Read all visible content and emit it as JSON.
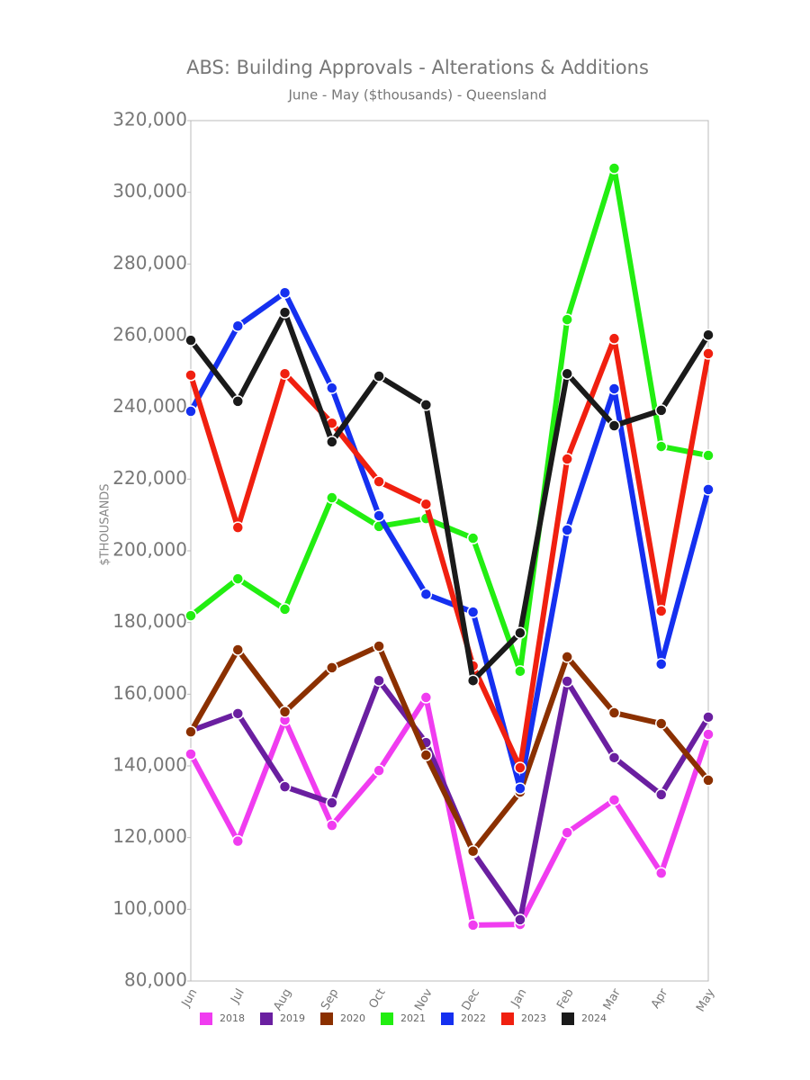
{
  "chart_data": {
    "type": "line",
    "title": "ABS: Building Approvals - Alterations & Additions",
    "subtitle": "June - May ($thousands) - Queensland",
    "y_label": "$THOUSANDS",
    "categories": [
      "Jun",
      "Jul",
      "Aug",
      "Sep",
      "Oct",
      "Nov",
      "Dec",
      "Jan",
      "Feb",
      "Mar",
      "Apr",
      "May"
    ],
    "ylim": [
      80000,
      320000
    ],
    "yticks": [
      {
        "value": 80000,
        "label": "80,000"
      },
      {
        "value": 100000,
        "label": "100,000"
      },
      {
        "value": 120000,
        "label": "120,000"
      },
      {
        "value": 140000,
        "label": "140,000"
      },
      {
        "value": 160000,
        "label": "160,000"
      },
      {
        "value": 180000,
        "label": "180,000"
      },
      {
        "value": 200000,
        "label": "200,000"
      },
      {
        "value": 220000,
        "label": "220,000"
      },
      {
        "value": 240000,
        "label": "240,000"
      },
      {
        "value": 260000,
        "label": "260,000"
      },
      {
        "value": 280000,
        "label": "280,000"
      },
      {
        "value": 300000,
        "label": "300,000"
      },
      {
        "value": 320000,
        "label": "320,000"
      }
    ],
    "series": [
      {
        "name": "2018",
        "color": "#f03cf0",
        "values": [
          143300,
          119000,
          152800,
          123400,
          138700,
          159100,
          95600,
          95800,
          121400,
          130500,
          110100,
          148800
        ]
      },
      {
        "name": "2019",
        "color": "#6a1fa0",
        "values": [
          149800,
          154600,
          134200,
          129700,
          163800,
          146500,
          115900,
          97100,
          163600,
          142300,
          132000,
          153600
        ]
      },
      {
        "name": "2020",
        "color": "#8b3000",
        "values": [
          149500,
          172400,
          155100,
          167400,
          173400,
          143000,
          116200,
          132700,
          170400,
          154800,
          151800,
          136000
        ]
      },
      {
        "name": "2021",
        "color": "#22ee11",
        "values": [
          181900,
          192200,
          183700,
          214800,
          206800,
          209000,
          203500,
          166400,
          264500,
          306700,
          229100,
          226600
        ]
      },
      {
        "name": "2022",
        "color": "#1530f0",
        "values": [
          238900,
          262700,
          272000,
          245400,
          209800,
          187900,
          182900,
          133700,
          205800,
          245200,
          168400,
          217100
        ]
      },
      {
        "name": "2023",
        "color": "#f02010",
        "values": [
          249000,
          206500,
          249400,
          235600,
          219300,
          213000,
          167900,
          139500,
          225600,
          259200,
          183200,
          255000
        ]
      },
      {
        "name": "2024",
        "color": "#1a1a1a",
        "values": [
          258700,
          241700,
          266500,
          230400,
          248700,
          240700,
          163800,
          177100,
          249400,
          234900,
          239200,
          260200
        ]
      }
    ]
  }
}
